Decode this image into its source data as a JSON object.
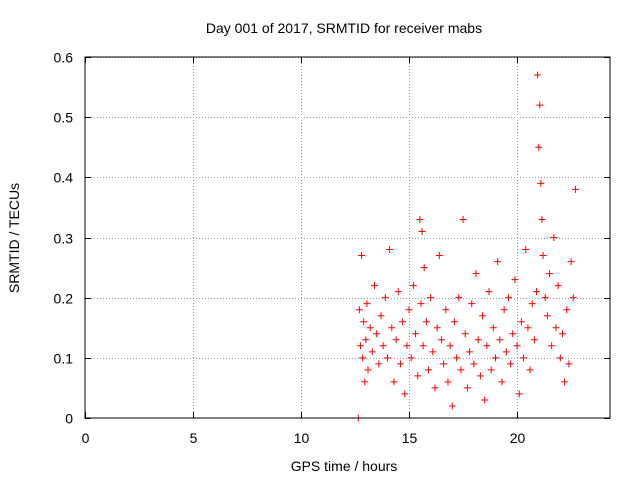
{
  "chart_data": {
    "type": "scatter",
    "title": "Day 001 of 2017, SRMTID for receiver mabs",
    "xlabel": "GPS time / hours",
    "ylabel": "SRMTID / TECUs",
    "xlim": [
      0,
      24.3
    ],
    "ylim": [
      0,
      0.6
    ],
    "x_ticks": [
      0,
      5,
      10,
      15,
      20
    ],
    "x_tick_labels": [
      "0",
      "5",
      "10",
      "15",
      "20"
    ],
    "y_ticks": [
      0,
      0.1,
      0.2,
      0.3,
      0.4,
      0.5,
      0.6
    ],
    "y_tick_labels": [
      "0",
      "0.1",
      "0.2",
      "0.3",
      "0.4",
      "0.5",
      "0.6"
    ],
    "grid": true,
    "marker": "plus",
    "series": [
      {
        "name": "SRMTID",
        "color": "#ff0000",
        "x": [
          12.65,
          12.7,
          12.75,
          12.8,
          12.85,
          12.9,
          12.95,
          13.0,
          13.05,
          13.1,
          13.2,
          13.3,
          13.4,
          13.5,
          13.6,
          13.7,
          13.8,
          13.9,
          14.0,
          14.1,
          14.2,
          14.3,
          14.4,
          14.5,
          14.6,
          14.7,
          14.8,
          14.9,
          15.0,
          15.1,
          15.2,
          15.3,
          15.4,
          15.5,
          15.55,
          15.6,
          15.65,
          15.7,
          15.8,
          15.9,
          16.0,
          16.1,
          16.2,
          16.3,
          16.4,
          16.5,
          16.6,
          16.7,
          16.8,
          16.9,
          17.0,
          17.1,
          17.2,
          17.3,
          17.4,
          17.5,
          17.6,
          17.7,
          17.8,
          17.9,
          18.0,
          18.1,
          18.2,
          18.3,
          18.4,
          18.5,
          18.6,
          18.7,
          18.8,
          18.9,
          19.0,
          19.1,
          19.2,
          19.3,
          19.4,
          19.5,
          19.6,
          19.7,
          19.8,
          19.9,
          20.0,
          20.1,
          20.2,
          20.3,
          20.4,
          20.5,
          20.6,
          20.7,
          20.8,
          20.9,
          20.95,
          21.0,
          21.05,
          21.1,
          21.15,
          21.2,
          21.3,
          21.4,
          21.5,
          21.6,
          21.7,
          21.8,
          21.9,
          22.0,
          22.1,
          22.2,
          22.3,
          22.4,
          22.5,
          22.6,
          22.7
        ],
        "y": [
          0.0,
          0.18,
          0.12,
          0.27,
          0.1,
          0.16,
          0.06,
          0.13,
          0.19,
          0.08,
          0.15,
          0.11,
          0.22,
          0.14,
          0.09,
          0.17,
          0.12,
          0.2,
          0.1,
          0.28,
          0.15,
          0.06,
          0.13,
          0.21,
          0.09,
          0.16,
          0.04,
          0.12,
          0.18,
          0.1,
          0.22,
          0.14,
          0.07,
          0.33,
          0.19,
          0.31,
          0.12,
          0.25,
          0.16,
          0.08,
          0.2,
          0.11,
          0.05,
          0.15,
          0.27,
          0.13,
          0.09,
          0.18,
          0.06,
          0.12,
          0.02,
          0.16,
          0.1,
          0.2,
          0.08,
          0.33,
          0.14,
          0.05,
          0.11,
          0.19,
          0.09,
          0.24,
          0.13,
          0.07,
          0.17,
          0.03,
          0.12,
          0.21,
          0.08,
          0.15,
          0.1,
          0.26,
          0.13,
          0.06,
          0.18,
          0.11,
          0.2,
          0.09,
          0.14,
          0.23,
          0.12,
          0.04,
          0.16,
          0.1,
          0.28,
          0.15,
          0.08,
          0.19,
          0.13,
          0.21,
          0.57,
          0.45,
          0.52,
          0.39,
          0.33,
          0.27,
          0.2,
          0.17,
          0.24,
          0.12,
          0.3,
          0.15,
          0.22,
          0.1,
          0.14,
          0.06,
          0.18,
          0.09,
          0.26,
          0.2,
          0.38
        ]
      }
    ]
  }
}
